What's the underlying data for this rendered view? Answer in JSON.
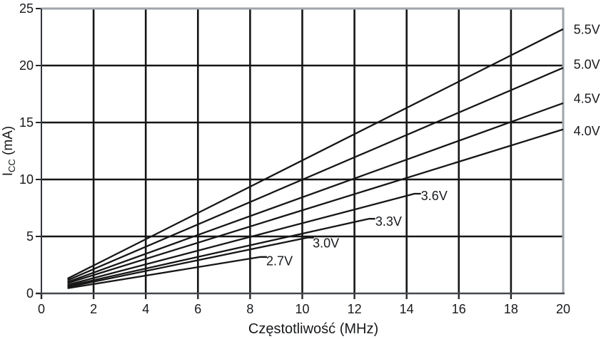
{
  "chart_data": {
    "type": "line",
    "title": "",
    "xlabel": "Częstotliwość (MHz)",
    "ylabel": "ICC (mA)",
    "ylabel_parts": {
      "main": "I",
      "sub": "CC",
      "rest": " (mA)"
    },
    "xlim": [
      0,
      20
    ],
    "ylim": [
      0,
      25
    ],
    "xticks": [
      0,
      2,
      4,
      6,
      8,
      10,
      12,
      14,
      16,
      18,
      20
    ],
    "yticks": [
      0,
      5,
      10,
      15,
      20,
      25
    ],
    "grid": true,
    "legend_position": "line-end-labels",
    "colors": {
      "line": "#161616",
      "grid": "#161616",
      "outer_border": "#a0a5ab",
      "axis": "#44484e",
      "text": "#17191c"
    },
    "series": [
      {
        "name": "5.5V",
        "label": "5.5V",
        "points": [
          [
            1,
            1.3
          ],
          [
            20,
            23.2
          ]
        ],
        "label_side": "right",
        "label_at": [
          20.4,
          23.15
        ],
        "leader": false
      },
      {
        "name": "5.0V",
        "label": "5.0V",
        "points": [
          [
            1,
            1.15
          ],
          [
            20,
            19.8
          ]
        ],
        "label_side": "right",
        "label_at": [
          20.4,
          20.1
        ],
        "leader": false
      },
      {
        "name": "4.5V",
        "label": "4.5V",
        "points": [
          [
            1,
            1.0
          ],
          [
            20,
            16.7
          ]
        ],
        "label_side": "right",
        "label_at": [
          20.4,
          17.1
        ],
        "leader": false
      },
      {
        "name": "4.0V",
        "label": "4.0V",
        "points": [
          [
            1,
            0.9
          ],
          [
            20,
            14.4
          ]
        ],
        "label_side": "right",
        "label_at": [
          20.4,
          14.25
        ],
        "leader": false
      },
      {
        "name": "3.6V",
        "label": "3.6V",
        "points": [
          [
            1,
            0.75
          ],
          [
            14.3,
            8.75
          ]
        ],
        "label_side": "inline",
        "label_at": [
          14.55,
          8.55
        ],
        "leader": true
      },
      {
        "name": "3.3V",
        "label": "3.3V",
        "points": [
          [
            1,
            0.65
          ],
          [
            12.55,
            6.55
          ]
        ],
        "label_side": "inline",
        "label_at": [
          12.8,
          6.3
        ],
        "leader": true
      },
      {
        "name": "3.0V",
        "label": "3.0V",
        "points": [
          [
            1,
            0.55
          ],
          [
            10.2,
            4.9
          ]
        ],
        "label_side": "inline",
        "label_at": [
          10.4,
          4.4
        ],
        "leader": true
      },
      {
        "name": "2.7V",
        "label": "2.7V",
        "points": [
          [
            1,
            0.45
          ],
          [
            8.4,
            3.2
          ]
        ],
        "label_side": "inline",
        "label_at": [
          8.62,
          2.85
        ],
        "leader": true
      }
    ]
  }
}
